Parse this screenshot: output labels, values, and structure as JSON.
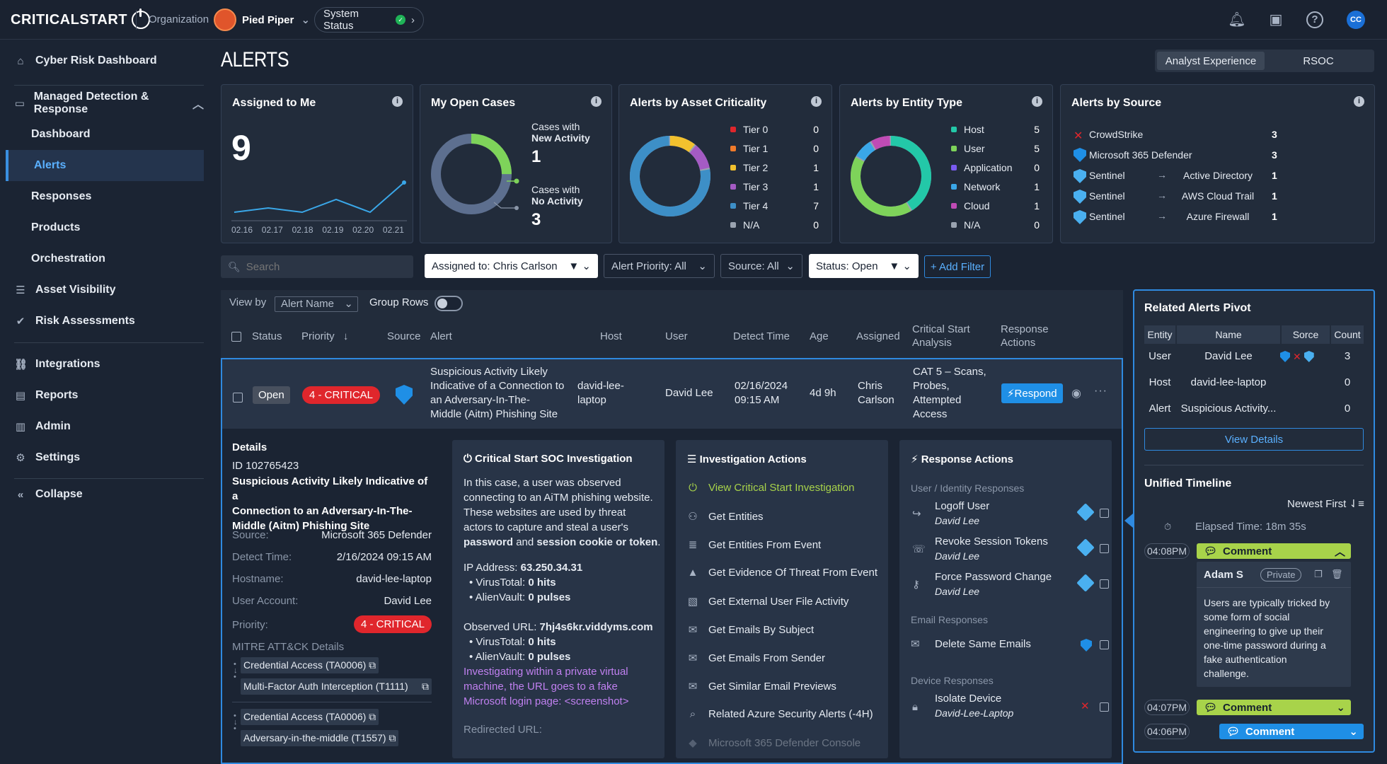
{
  "topbar": {
    "logo": "CRITICALSTART",
    "org_label": "Organization",
    "org_name": "Pied Piper",
    "system_status": "System Status",
    "avatar": "CC"
  },
  "sidebar": {
    "cyber_risk": "Cyber Risk Dashboard",
    "mdr": "Managed Detection & Response",
    "sub": [
      "Dashboard",
      "Alerts",
      "Responses",
      "Products",
      "Orchestration"
    ],
    "asset_visibility": "Asset Visibility",
    "risk_assessments": "Risk Assessments",
    "integrations": "Integrations",
    "reports": "Reports",
    "admin": "Admin",
    "settings": "Settings",
    "collapse": "Collapse"
  },
  "page": {
    "title": "ALERTS",
    "modes": [
      "Analyst Experience",
      "RSOC"
    ]
  },
  "cards": {
    "assigned": {
      "title": "Assigned to Me",
      "value": "9",
      "x_labels": [
        "02.16",
        "02.17",
        "02.18",
        "02.19",
        "02.20",
        "02.21"
      ],
      "points": [
        2,
        3,
        2,
        5,
        2,
        9
      ]
    },
    "open_cases": {
      "title": "My Open Cases",
      "new_label_1": "Cases with",
      "new_label_2": "New Activity",
      "new_value": "1",
      "no_label_1": "Cases with",
      "no_label_2": "No Activity",
      "no_value": "3"
    },
    "asset": {
      "title": "Alerts by Asset Criticality",
      "items": [
        {
          "label": "Tier 0",
          "value": "0",
          "color": "#e0262c"
        },
        {
          "label": "Tier 1",
          "value": "0",
          "color": "#f07b2b"
        },
        {
          "label": "Tier 2",
          "value": "1",
          "color": "#f2c12e"
        },
        {
          "label": "Tier 3",
          "value": "1",
          "color": "#a45bc4"
        },
        {
          "label": "Tier 4",
          "value": "7",
          "color": "#3d8fc7"
        },
        {
          "label": "N/A",
          "value": "0",
          "color": "#9aa3b0"
        }
      ]
    },
    "entity": {
      "title": "Alerts by Entity Type",
      "items": [
        {
          "label": "Host",
          "value": "5",
          "color": "#23c8a8"
        },
        {
          "label": "User",
          "value": "5",
          "color": "#7ed35a"
        },
        {
          "label": "Application",
          "value": "0",
          "color": "#7a5bf0"
        },
        {
          "label": "Network",
          "value": "1",
          "color": "#3aa7e8"
        },
        {
          "label": "Cloud",
          "value": "1",
          "color": "#c04bb5"
        },
        {
          "label": "N/A",
          "value": "0",
          "color": "#9aa3b0"
        }
      ]
    },
    "source": {
      "title": "Alerts by Source",
      "items": [
        {
          "name": "CrowdStrike",
          "target": "",
          "value": "3"
        },
        {
          "name": "Microsoft 365 Defender",
          "target": "",
          "value": "3"
        },
        {
          "name": "Sentinel",
          "target": "Active Directory",
          "value": "1"
        },
        {
          "name": "Sentinel",
          "target": "AWS Cloud Trail",
          "value": "1"
        },
        {
          "name": "Sentinel",
          "target": "Azure Firewall",
          "value": "1"
        }
      ]
    }
  },
  "filters": {
    "search_placeholder": "Search",
    "assigned": "Assigned to: Chris Carlson",
    "priority": "Alert Priority: All",
    "source": "Source: All",
    "status": "Status: Open",
    "add": "+ Add Filter"
  },
  "table": {
    "view_by": "View by",
    "view_by_value": "Alert Name",
    "group_rows": "Group Rows",
    "headers": {
      "status": "Status",
      "priority": "Priority",
      "source": "Source",
      "alert": "Alert",
      "host": "Host",
      "user": "User",
      "detect": "Detect Time",
      "age": "Age",
      "assigned": "Assigned",
      "csa_1": "Critical Start",
      "csa_2": "Analysis",
      "resp_1": "Response",
      "resp_2": "Actions"
    },
    "row": {
      "status": "Open",
      "priority": "4 - CRITICAL",
      "alert": [
        "Suspicious Activity Likely",
        "Indicative of a Connection to",
        "an Adversary-In-The-",
        "Middle (Aitm) Phishing Site"
      ],
      "host": [
        "david-lee-",
        "laptop"
      ],
      "user": "David Lee",
      "detect": [
        "02/16/2024",
        "09:15 AM"
      ],
      "age": "4d 9h",
      "assigned": [
        "Chris",
        "Carlson"
      ],
      "analysis": [
        "CAT 5 – Scans,",
        "Probes,",
        "Attempted",
        "Access"
      ],
      "respond": "Respond"
    }
  },
  "details": {
    "title": "Details",
    "id": "ID 102765423",
    "name": [
      "Suspicious Activity Likely Indicative of a",
      "Connection to an Adversary-In-The-",
      "Middle (Aitm) Phishing Site"
    ],
    "fields": [
      {
        "k": "Source:",
        "v": "Microsoft 365 Defender"
      },
      {
        "k": "Detect Time:",
        "v": "2/16/2024 09:15 AM"
      },
      {
        "k": "Hostname:",
        "v": "david-lee-laptop"
      },
      {
        "k": "User Account:",
        "v": "David Lee"
      }
    ],
    "priority_label": "Priority:",
    "priority": "4 - CRITICAL",
    "mitre_title": "MITRE ATT&CK Details",
    "mitre": [
      "Credential Access (TA0006)",
      "Multi-Factor Auth Interception (T1111)",
      "Credential Access (TA0006)",
      "Adversary-in-the-middle (T1557)"
    ]
  },
  "soc": {
    "title": "Critical Start SOC Investigation",
    "p1": [
      "In this case, a user was observed",
      "connecting to an AiTM phishing website.",
      "These websites are used by threat",
      "actors to capture and steal a user's"
    ],
    "p1_last_b1": "password",
    "p1_last_mid": " and ",
    "p1_last_b2": "session cookie or token",
    "p1_last_end": ".",
    "ip_label": "IP Address: ",
    "ip": "63.250.34.31",
    "vt_label": "VirusTotal: ",
    "vt": "0 hits",
    "av_label": "AlienVault: ",
    "av": "0 pulses",
    "url_label": "Observed URL: ",
    "url": "7hj4s6kr.viddyms.com",
    "vt2": "0 hits",
    "av2": "0 pulses",
    "note": [
      "Investigating within a private virtual",
      "machine, the URL goes to a fake",
      "Microsoft login page: <screenshot>"
    ],
    "redirect": "Redirected URL:"
  },
  "inv": {
    "title": "Investigation Actions",
    "view": "View Critical Start Investigation",
    "items": [
      "Get Entities",
      "Get Entities From Event",
      "Get Evidence Of Threat From Event",
      "Get External User File Activity",
      "Get Emails By Subject",
      "Get Emails From Sender",
      "Get Similar Email Previews",
      "Related Azure Security Alerts (-4H)",
      "Microsoft 365 Defender Console"
    ]
  },
  "resp": {
    "title": "Response Actions",
    "user_title": "User / Identity Responses",
    "user_items": [
      {
        "name": "Logoff User",
        "sub": "David Lee"
      },
      {
        "name": "Revoke Session Tokens",
        "sub": "David Lee"
      },
      {
        "name": "Force Password Change",
        "sub": "David Lee"
      }
    ],
    "email_title": "Email Responses",
    "email_item": "Delete Same Emails",
    "device_title": "Device Responses",
    "device_item": "Isolate Device",
    "device_sub": "David-Lee-Laptop"
  },
  "pivot": {
    "title": "Related Alerts Pivot",
    "headers": [
      "Entity",
      "Name",
      "Sorce",
      "Count"
    ],
    "rows": [
      {
        "entity": "User",
        "name": "David Lee",
        "count": "3"
      },
      {
        "entity": "Host",
        "name": "david-lee-laptop",
        "count": "0"
      },
      {
        "entity": "Alert",
        "name": "Suspicious Activity...",
        "count": "0"
      }
    ],
    "view_details": "View Details"
  },
  "timeline": {
    "title": "Unified Timeline",
    "sort": "Newest First",
    "elapsed": "Elapsed Time: 18m 35s",
    "entries": [
      {
        "time": "04:08PM",
        "label": "Comment"
      },
      {
        "time": "04:07PM",
        "label": "Comment"
      },
      {
        "time": "04:06PM",
        "label": "Comment"
      }
    ],
    "author": "Adam S",
    "private": "Private",
    "comment": [
      "Users are typically tricked by",
      "some form of social",
      "engineering to give up their",
      "one-time password during a",
      "fake authentication",
      "challenge."
    ]
  }
}
